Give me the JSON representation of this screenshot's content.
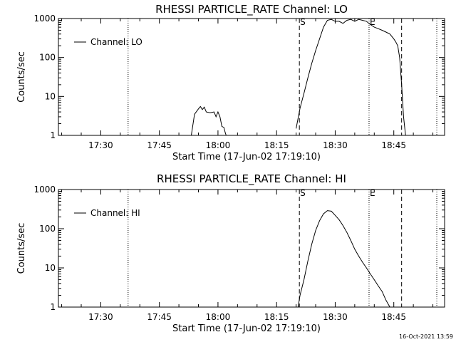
{
  "chart_data": [
    {
      "type": "line",
      "title": "RHESSI PARTICLE_RATE Channel: LO",
      "xlabel": "Start Time (17-Jun-02 17:19:10)",
      "ylabel": "Counts/sec",
      "y_scale": "log",
      "xlim": [
        "17:19:10",
        "18:58:00"
      ],
      "ylim": [
        1,
        1000
      ],
      "x_ticks": [
        "17:30",
        "17:45",
        "18:00",
        "18:15",
        "18:30",
        "18:45"
      ],
      "y_ticks": [
        "1",
        "10",
        "100",
        "1000"
      ],
      "legend": {
        "label": "Channel: LO",
        "placement": "top-left"
      },
      "markers": [
        {
          "label": "",
          "time": "17:37:00",
          "style": "dotted"
        },
        {
          "label": "S",
          "time": "18:20:50",
          "style": "dashed"
        },
        {
          "label": "E",
          "time": "18:38:40",
          "style": "dotted"
        },
        {
          "label": "",
          "time": "18:47:00",
          "style": "dashed"
        },
        {
          "label": "",
          "time": "18:56:00",
          "style": "dotted"
        }
      ],
      "series": [
        {
          "name": "Channel: LO",
          "x": [
            "17:53:10",
            "17:54:00",
            "17:55:00",
            "17:55:30",
            "17:56:00",
            "17:56:30",
            "17:57:00",
            "17:58:00",
            "17:59:00",
            "17:59:30",
            "18:00:00",
            "18:00:30",
            "18:01:00",
            "18:01:30",
            "18:01:50",
            "18:02:10"
          ],
          "values": [
            1.0,
            3.5,
            4.8,
            5.5,
            4.6,
            5.3,
            4.0,
            3.8,
            4.0,
            3.0,
            4.0,
            3.0,
            1.7,
            1.6,
            1.2,
            0.95
          ]
        },
        {
          "name": "Channel: LO",
          "x": [
            "18:20:00",
            "18:21:00",
            "18:22:00",
            "18:23:00",
            "18:24:00",
            "18:25:00",
            "18:26:00",
            "18:27:00",
            "18:28:00",
            "18:29:00",
            "18:30:00",
            "18:31:00",
            "18:32:00",
            "18:33:00",
            "18:34:00",
            "18:35:00",
            "18:36:00",
            "18:37:00",
            "18:38:00",
            "18:39:00",
            "18:40:00",
            "18:41:00",
            "18:42:00",
            "18:43:00",
            "18:44:00",
            "18:45:00",
            "18:45:30",
            "18:46:00",
            "18:46:30",
            "18:47:00",
            "18:47:30",
            "18:48:00"
          ],
          "values": [
            1.5,
            5,
            12,
            30,
            70,
            150,
            300,
            600,
            900,
            950,
            850,
            850,
            750,
            900,
            950,
            850,
            950,
            900,
            850,
            700,
            600,
            550,
            500,
            450,
            400,
            300,
            250,
            200,
            100,
            20,
            3,
            1
          ]
        }
      ]
    },
    {
      "type": "line",
      "title": "RHESSI PARTICLE_RATE Channel: HI",
      "xlabel": "Start Time (17-Jun-02 17:19:10)",
      "ylabel": "Counts/sec",
      "y_scale": "log",
      "xlim": [
        "17:19:10",
        "18:58:00"
      ],
      "ylim": [
        1,
        1000
      ],
      "x_ticks": [
        "17:30",
        "17:45",
        "18:00",
        "18:15",
        "18:30",
        "18:45"
      ],
      "y_ticks": [
        "1",
        "10",
        "100",
        "1000"
      ],
      "legend": {
        "label": "Channel: HI",
        "placement": "top-left"
      },
      "markers": [
        {
          "label": "",
          "time": "17:37:00",
          "style": "dotted"
        },
        {
          "label": "S",
          "time": "18:20:50",
          "style": "dashed"
        },
        {
          "label": "E",
          "time": "18:38:40",
          "style": "dotted"
        },
        {
          "label": "",
          "time": "18:47:00",
          "style": "dashed"
        },
        {
          "label": "",
          "time": "18:56:00",
          "style": "dotted"
        }
      ],
      "series": [
        {
          "name": "Channel: HI",
          "x": [
            "18:20:30",
            "18:21:00",
            "18:22:00",
            "18:23:00",
            "18:24:00",
            "18:25:00",
            "18:26:00",
            "18:27:00",
            "18:28:00",
            "18:29:00",
            "18:30:00",
            "18:31:00",
            "18:32:00",
            "18:33:00",
            "18:34:00",
            "18:35:00",
            "18:36:00",
            "18:37:00",
            "18:38:00",
            "18:39:00",
            "18:40:00",
            "18:41:00",
            "18:42:00",
            "18:43:00",
            "18:44:00"
          ],
          "values": [
            1.0,
            2.0,
            5,
            15,
            40,
            90,
            160,
            240,
            290,
            280,
            220,
            170,
            120,
            80,
            50,
            30,
            20,
            14,
            10,
            7,
            5,
            3.5,
            2.5,
            1.5,
            1.0
          ]
        },
        {
          "name": "Channel: HI",
          "x": [
            "18:44:00",
            "18:45:00",
            "18:45:30"
          ],
          "values": [
            1.0,
            1.0,
            0.9
          ]
        }
      ]
    }
  ],
  "footer": {
    "timestamp": "16-Oct-2021 13:59"
  }
}
